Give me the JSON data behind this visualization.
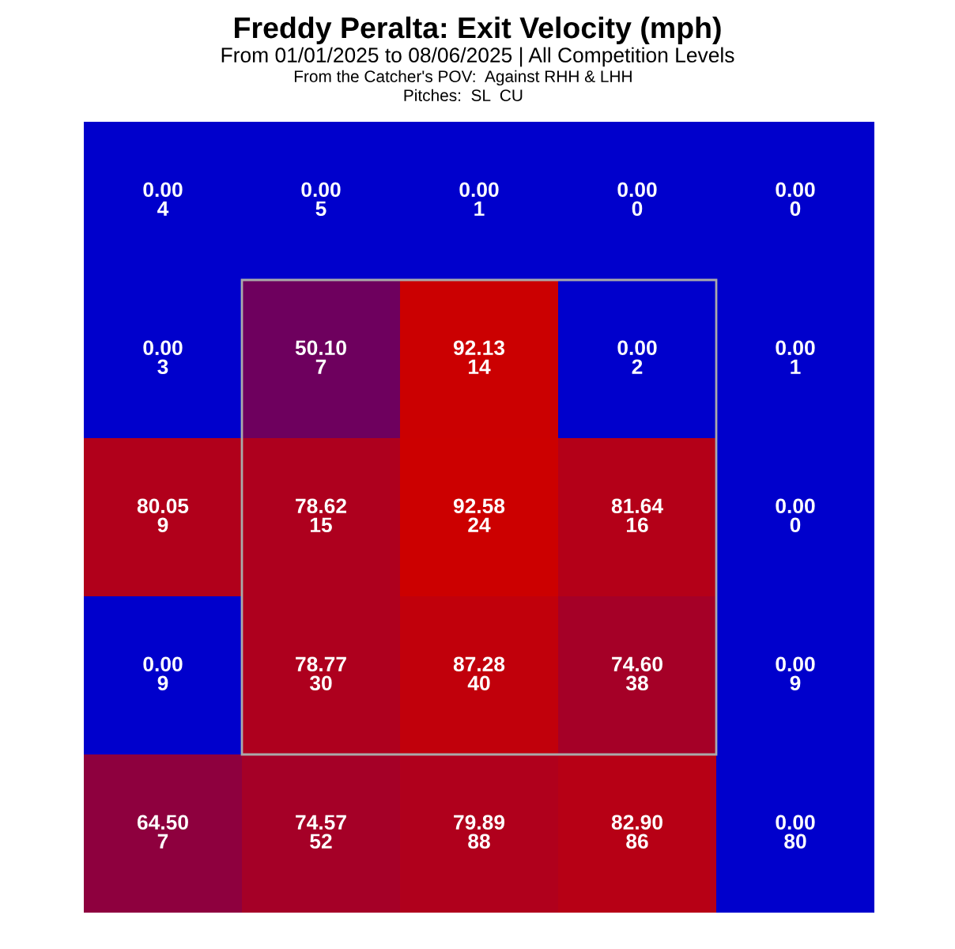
{
  "chart_data": {
    "type": "heatmap",
    "title": "Freddy Peralta: Exit Velocity (mph)",
    "subtitle": "From 01/01/2025 to 08/06/2025 | All Competition Levels",
    "annotations": [
      "From the Catcher's POV:  Against RHH & LHH",
      "Pitches:  SL  CU",
      "4",
      "5",
      "1",
      "0",
      "0",
      "3",
      "7",
      "14",
      "2",
      "1",
      "9",
      "15",
      "24",
      "16",
      "0",
      "9",
      "30",
      "40",
      "38",
      "9",
      "7",
      "52",
      "88",
      "86",
      "80"
    ],
    "categories": [
      null,
      null,
      null,
      null,
      null
    ],
    "y_categories": [
      null,
      null,
      null,
      null,
      null
    ],
    "colors": [
      "#0000cc",
      "#cc0000"
    ],
    "cell_labels": [
      [
        "0.00",
        "0.00",
        "0.00",
        "0.00",
        "0.00"
      ],
      [
        "0.00",
        "50.10",
        "92.13",
        "0.00",
        "0.00"
      ],
      [
        "80.05",
        "78.62",
        "92.58",
        "81.64",
        "0.00"
      ],
      [
        "0.00",
        "78.77",
        "87.28",
        "74.60",
        "0.00"
      ],
      [
        "64.50",
        "74.57",
        "79.89",
        "82.90",
        "0.00"
      ]
    ],
    "cells": [
      [
        0.0,
        0.0,
        0.0,
        0.0,
        0.0
      ],
      [
        0.0,
        50.1,
        92.13,
        0.0,
        0.0
      ],
      [
        80.05,
        78.62,
        92.58,
        81.64,
        0.0
      ],
      [
        0.0,
        78.77,
        87.28,
        74.6,
        0.0
      ],
      [
        64.5,
        74.57,
        79.89,
        82.9,
        0.0
      ]
    ]
  }
}
